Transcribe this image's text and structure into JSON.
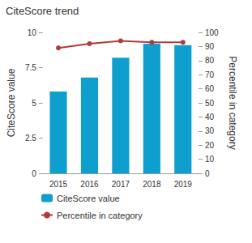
{
  "chart_data": {
    "type": "bar",
    "title": "CiteScore trend",
    "categories": [
      "2015",
      "2016",
      "2017",
      "2018",
      "2019"
    ],
    "series": [
      {
        "name": "CiteScore value",
        "type": "bar",
        "color": "#0e9fcf",
        "values": [
          5.8,
          6.8,
          8.2,
          9.2,
          9.1
        ]
      },
      {
        "name": "Percentile in category",
        "type": "line",
        "color": "#b03a3a",
        "axis": "y2",
        "marker": "circle",
        "values": [
          89,
          92,
          94,
          93,
          93
        ]
      }
    ],
    "ylabel": "CiteScore value",
    "y2label": "Percentile in category",
    "ylim": [
      0,
      10
    ],
    "yticks": [
      0,
      2.5,
      5,
      7.5,
      10
    ],
    "y2lim": [
      0,
      100
    ],
    "y2ticks": [
      0,
      10,
      20,
      30,
      40,
      50,
      60,
      70,
      80,
      90,
      100
    ],
    "legend": "bottom",
    "grid": false
  }
}
